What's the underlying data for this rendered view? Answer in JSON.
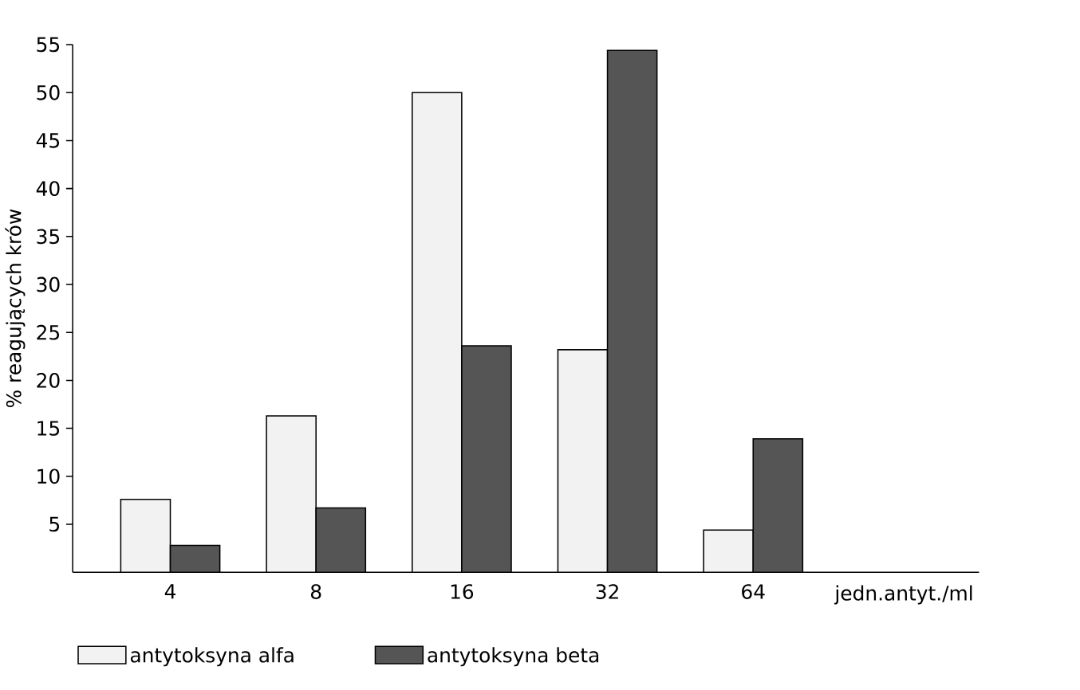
{
  "chart_data": {
    "type": "bar",
    "ylabel": "% reagujących krów",
    "xlabel": "jedn.antyt./ml",
    "categories": [
      "4",
      "8",
      "16",
      "32",
      "64"
    ],
    "series": [
      {
        "name": "antytoksyna alfa",
        "color": "#f2f2f2",
        "values": [
          7.6,
          16.3,
          50,
          23.2,
          4.4
        ]
      },
      {
        "name": "antytoksyna beta",
        "color": "#555555",
        "values": [
          2.8,
          6.7,
          23.6,
          54.4,
          13.9
        ]
      }
    ],
    "ylim": [
      0,
      55
    ],
    "yticks": [
      5,
      10,
      15,
      20,
      25,
      30,
      35,
      40,
      45,
      50,
      55
    ],
    "legend": "bottom"
  }
}
